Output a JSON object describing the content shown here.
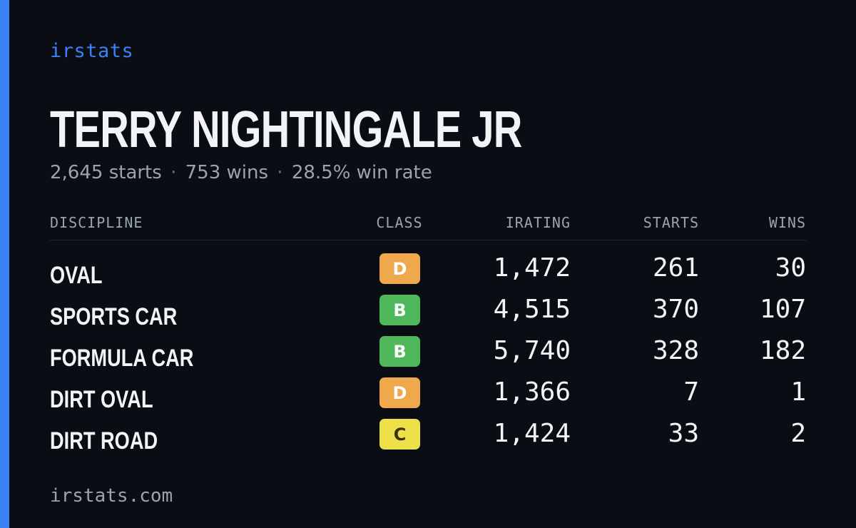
{
  "brand": "irstats",
  "driver": {
    "name": "TERRY NIGHTINGALE JR",
    "starts": "2,645 starts",
    "wins": "753 wins",
    "win_rate": "28.5% win rate",
    "separator": "·"
  },
  "table": {
    "headers": {
      "discipline": "DISCIPLINE",
      "class": "CLASS",
      "irating": "IRATING",
      "starts": "STARTS",
      "wins": "WINS"
    },
    "rows": [
      {
        "discipline": "OVAL",
        "class": "D",
        "class_color": "#f0a84c",
        "irating": "1,472",
        "starts": "261",
        "wins": "30"
      },
      {
        "discipline": "SPORTS CAR",
        "class": "B",
        "class_color": "#4fb85a",
        "irating": "4,515",
        "starts": "370",
        "wins": "107"
      },
      {
        "discipline": "FORMULA CAR",
        "class": "B",
        "class_color": "#4fb85a",
        "irating": "5,740",
        "starts": "328",
        "wins": "182"
      },
      {
        "discipline": "DIRT OVAL",
        "class": "D",
        "class_color": "#f0a84c",
        "irating": "1,366",
        "starts": "7",
        "wins": "1"
      },
      {
        "discipline": "DIRT ROAD",
        "class": "C",
        "class_color": "#eee04a",
        "class_text_color": "#3a3200",
        "irating": "1,424",
        "starts": "33",
        "wins": "2"
      }
    ]
  },
  "footer": "irstats.com",
  "colors": {
    "accent": "#3b82f6",
    "background": "#0a0d14"
  }
}
